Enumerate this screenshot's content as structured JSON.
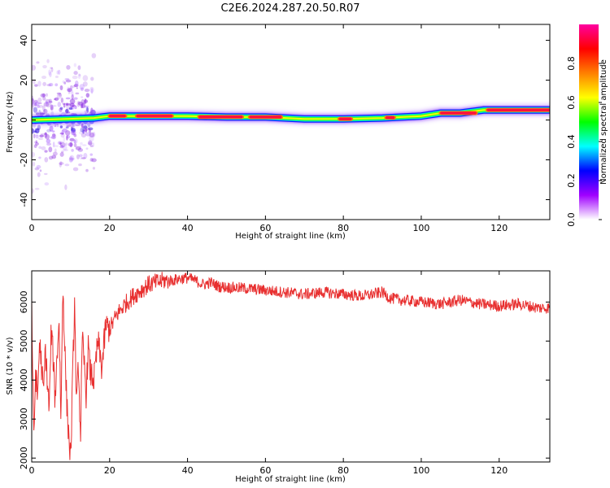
{
  "title": "C2E6.2024.287.20.50.R07",
  "chart_data": [
    {
      "type": "heatmap",
      "title": "",
      "xlabel": "Height of straight line (km)",
      "ylabel": "Frequency (Hz)",
      "xlim": [
        0,
        133
      ],
      "ylim": [
        -50,
        48
      ],
      "xticks": [
        0,
        20,
        40,
        60,
        80,
        100,
        120
      ],
      "yticks": [
        -40,
        -20,
        0,
        20,
        40
      ],
      "xtick_labels": [
        "0",
        "20",
        "40",
        "60",
        "80",
        "100",
        "120"
      ],
      "ytick_labels": [
        "-40",
        "-20",
        "0",
        "20",
        "40"
      ],
      "colorbar": {
        "label": "Normalized spectral amplitude",
        "range": [
          0,
          1
        ],
        "ticks": [
          0.0,
          0.2,
          0.4,
          0.6,
          0.8
        ],
        "tick_labels": [
          "0.0",
          "0.2",
          "0.4",
          "0.6",
          "0.8"
        ],
        "colors": [
          "#ffffff",
          "#a000ff",
          "#0000ff",
          "#00ffff",
          "#00ff00",
          "#ffff00",
          "#ff8000",
          "#ff0000",
          "#ff00a0"
        ]
      },
      "noise_region": {
        "x_range": [
          0,
          16
        ],
        "freq_range": [
          -40,
          40
        ]
      },
      "ridge": {
        "x": [
          0,
          16,
          20,
          30,
          40,
          50,
          60,
          70,
          80,
          90,
          100,
          105,
          110,
          116,
          120,
          133
        ],
        "freq": [
          0,
          1,
          2,
          2,
          2,
          1.5,
          1.5,
          0.5,
          0.5,
          1,
          2,
          3.5,
          3.5,
          5,
          5,
          5
        ]
      },
      "hot_segments": [
        [
          20,
          24
        ],
        [
          27,
          36
        ],
        [
          43,
          54
        ],
        [
          56,
          64
        ],
        [
          79,
          82
        ],
        [
          91,
          93
        ],
        [
          105,
          114
        ],
        [
          117,
          133
        ]
      ],
      "grid": false,
      "legend": "none"
    },
    {
      "type": "line",
      "title": "",
      "xlabel": "Height of straight line (km)",
      "ylabel": "SNR (10 * v/v)",
      "xlim": [
        0,
        133
      ],
      "ylim": [
        1900,
        6800
      ],
      "xticks": [
        0,
        20,
        40,
        60,
        80,
        100,
        120
      ],
      "yticks": [
        2000,
        3000,
        4000,
        5000,
        6000
      ],
      "xtick_labels": [
        "0",
        "20",
        "40",
        "60",
        "80",
        "100",
        "120"
      ],
      "ytick_labels": [
        "2000",
        "3000",
        "4000",
        "5000",
        "6000"
      ],
      "series": [
        {
          "color": "#e83030",
          "x": [
            0,
            0.5,
            1,
            1.5,
            2,
            2.5,
            3,
            3.5,
            4,
            4.5,
            5,
            5.5,
            6,
            6.5,
            7,
            7.5,
            8,
            8.5,
            9,
            9.5,
            10,
            10.5,
            11,
            11.5,
            12,
            12.5,
            13,
            13.5,
            14,
            14.5,
            15,
            16,
            17,
            18,
            19,
            20,
            22,
            24,
            26,
            28,
            30,
            32,
            34,
            36,
            38,
            40,
            42,
            44,
            46,
            48,
            50,
            55,
            60,
            65,
            70,
            75,
            80,
            85,
            90,
            92,
            95,
            100,
            105,
            110,
            115,
            120,
            125,
            130,
            133
          ],
          "values": [
            6000,
            2400,
            4200,
            3500,
            5000,
            4400,
            3600,
            4800,
            4000,
            3200,
            5300,
            4600,
            3500,
            4600,
            5600,
            3000,
            6500,
            4800,
            3400,
            2600,
            1950,
            4000,
            6000,
            3200,
            4500,
            2500,
            5000,
            4400,
            3600,
            4900,
            4200,
            4000,
            5000,
            4300,
            5400,
            5300,
            5700,
            5950,
            6150,
            6300,
            6450,
            6500,
            6550,
            6550,
            6600,
            6620,
            6550,
            6450,
            6500,
            6400,
            6380,
            6350,
            6300,
            6250,
            6200,
            6250,
            6200,
            6150,
            6250,
            6100,
            6050,
            6000,
            5950,
            6050,
            5950,
            5900,
            5950,
            5850,
            5850
          ]
        }
      ],
      "grid": false,
      "legend": "none"
    }
  ]
}
